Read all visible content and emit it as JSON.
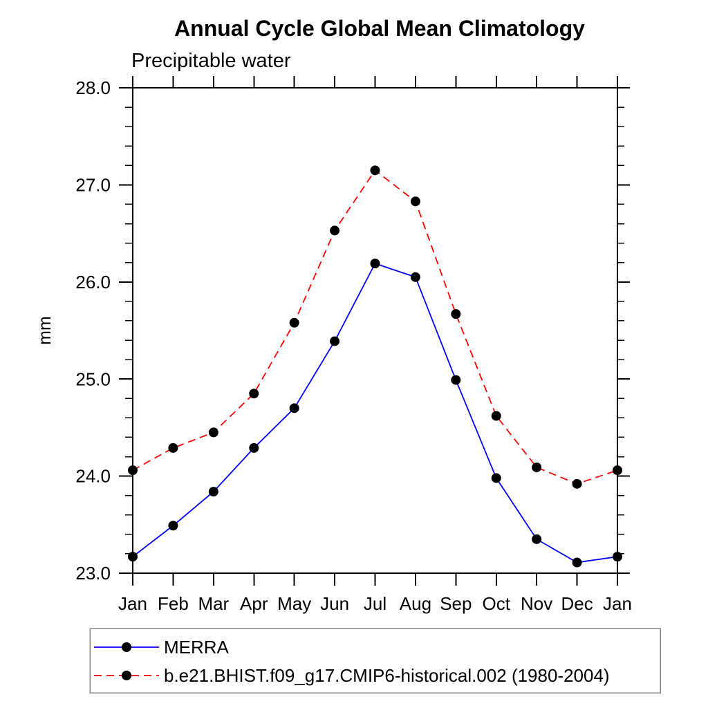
{
  "page": {
    "background_color": "#ffffff",
    "text_color": "#000000"
  },
  "chart_data": {
    "type": "line",
    "title": "Annual Cycle Global Mean Climatology",
    "subtitle": "Precipitable water",
    "ylabel": "mm",
    "x_categories": [
      "Jan",
      "Feb",
      "Mar",
      "Apr",
      "May",
      "Jun",
      "Jul",
      "Aug",
      "Sep",
      "Oct",
      "Nov",
      "Dec",
      "Jan"
    ],
    "ylim": [
      23.0,
      28.0
    ],
    "ytick_labels": [
      "23.0",
      "24.0",
      "25.0",
      "26.0",
      "27.0",
      "28.0"
    ],
    "ytick_minor_step": 0.2,
    "grid": false,
    "axis_color": "#000000",
    "legend_position": "bottom-left-box",
    "legend_border_color": "#848484",
    "series": [
      {
        "name": "MERRA",
        "color": "#0000ff",
        "line_style": "solid",
        "marker": "filled-circle",
        "marker_color": "#000000",
        "values": [
          23.17,
          23.49,
          23.84,
          24.29,
          24.7,
          25.39,
          26.19,
          26.05,
          24.99,
          23.98,
          23.35,
          23.11,
          23.17
        ]
      },
      {
        "name": "b.e21.BHIST.f09_g17.CMIP6-historical.002 (1980-2004)",
        "color": "#ff0000",
        "line_style": "dashed",
        "marker": "filled-circle",
        "marker_color": "#000000",
        "values": [
          24.06,
          24.29,
          24.45,
          24.85,
          25.58,
          26.53,
          27.15,
          26.83,
          25.67,
          24.62,
          24.09,
          23.92,
          24.06
        ]
      }
    ]
  }
}
